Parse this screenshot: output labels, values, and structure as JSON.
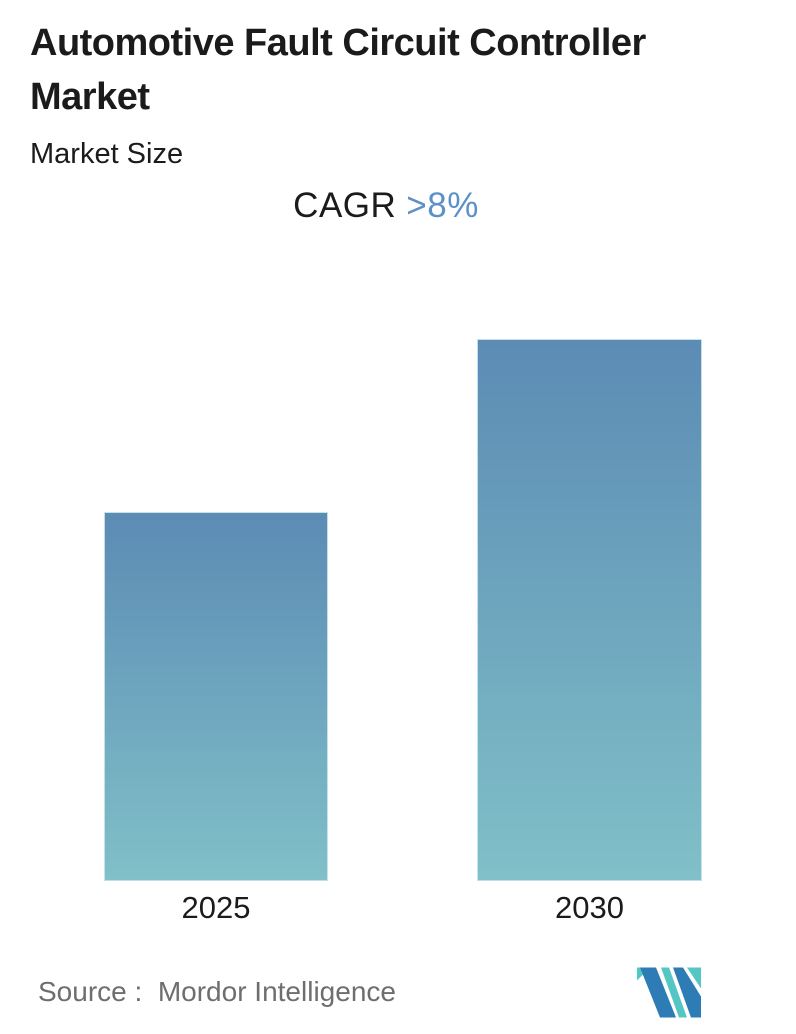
{
  "page": {
    "title": "Automotive Fault Circuit Controller Market",
    "subtitle": "Market Size",
    "cagr_label": "CAGR",
    "cagr_value": ">8%",
    "source": "Source :  Mordor Intelligence"
  },
  "chart_data": {
    "type": "bar",
    "title": "Automotive Fault Circuit Controller Market",
    "subtitle": "Market Size",
    "categories": [
      "2025",
      "2030"
    ],
    "values": [
      1.0,
      1.47
    ],
    "value_units": "relative market size index (no numeric axis shown)",
    "note": "2030 bar is ~1.47x the 2025 bar, consistent with the annotated CAGR of >8% over 2025-2030",
    "annotations": [
      "CAGR >8%"
    ],
    "xlabel": "",
    "ylabel": "",
    "axes_shown": false,
    "gridlines": false,
    "legend": "none",
    "bar_gradient": [
      "#5C8BB4",
      "#80C0C8"
    ]
  },
  "logo": {
    "name": "Mordor Intelligence monogram"
  },
  "colors": {
    "text_dark": "#1b1b1b",
    "accent_blue": "#5b90c8",
    "bar_top": "#5c8bb4",
    "bar_bottom": "#80c0c8",
    "source_gray": "#6e6e6e",
    "logo_blue": "#2e7cb5",
    "logo_teal": "#54c7c4"
  }
}
